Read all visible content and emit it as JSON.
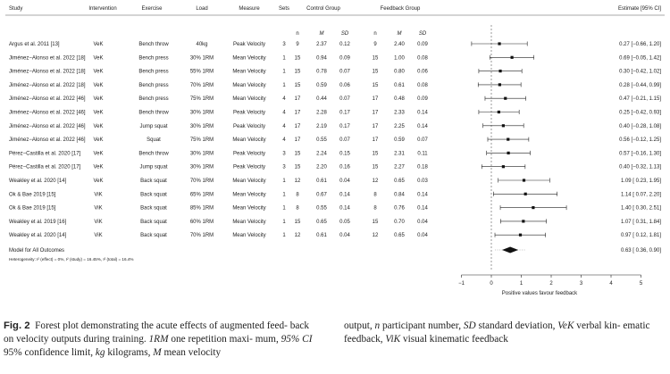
{
  "chart_data": {
    "type": "forest",
    "columns": [
      "Study",
      "Intervention",
      "Exercise",
      "Load",
      "Measure",
      "Sets",
      "Control Group",
      "Feedback Group",
      "Estimate [95% CI]"
    ],
    "subcolumns": [
      "n",
      "M",
      "SD"
    ],
    "rows": [
      {
        "study": "Argus et al. 2011 [13]",
        "intervention": "VeK",
        "exercise": "Bench throw",
        "load": "40kg",
        "measure": "Peak Velocity",
        "sets": "3",
        "c_n": "9",
        "c_m": "2.37",
        "c_sd": "0.12",
        "f_n": "9",
        "f_m": "2.40",
        "f_sd": "0.09",
        "ci_label": "0.27 [−0.66, 1.20]",
        "est": 0.27,
        "lo": -0.66,
        "hi": 1.2
      },
      {
        "study": "Jiménez−Alonso et al. 2022 [18]",
        "intervention": "VeK",
        "exercise": "Bench press",
        "load": "30% 1RM",
        "measure": "Mean Velocity",
        "sets": "1",
        "c_n": "15",
        "c_m": "0.94",
        "c_sd": "0.09",
        "f_n": "15",
        "f_m": "1.00",
        "f_sd": "0.08",
        "ci_label": "0.69 [−0.05, 1.42]",
        "est": 0.69,
        "lo": -0.05,
        "hi": 1.42
      },
      {
        "study": "Jiménez−Alonso et al. 2022 [18]",
        "intervention": "VeK",
        "exercise": "Bench press",
        "load": "55% 1RM",
        "measure": "Mean Velocity",
        "sets": "1",
        "c_n": "15",
        "c_m": "0.78",
        "c_sd": "0.07",
        "f_n": "15",
        "f_m": "0.80",
        "f_sd": "0.06",
        "ci_label": "0.30 [−0.42, 1.02]",
        "est": 0.3,
        "lo": -0.42,
        "hi": 1.02
      },
      {
        "study": "Jiménez−Alonso et al. 2022 [18]",
        "intervention": "VeK",
        "exercise": "Bench press",
        "load": "70% 1RM",
        "measure": "Mean Velocity",
        "sets": "1",
        "c_n": "15",
        "c_m": "0.59",
        "c_sd": "0.06",
        "f_n": "15",
        "f_m": "0.61",
        "f_sd": "0.08",
        "ci_label": "0.28 [−0.44, 0.99]",
        "est": 0.28,
        "lo": -0.44,
        "hi": 0.99
      },
      {
        "study": "Jiménez−Alonso et al. 2022 [46]",
        "intervention": "VeK",
        "exercise": "Bench press",
        "load": "75% 1RM",
        "measure": "Mean Velocity",
        "sets": "4",
        "c_n": "17",
        "c_m": "0.44",
        "c_sd": "0.07",
        "f_n": "17",
        "f_m": "0.48",
        "f_sd": "0.09",
        "ci_label": "0.47 [−0.21, 1.15]",
        "est": 0.47,
        "lo": -0.21,
        "hi": 1.15
      },
      {
        "study": "Jiménez−Alonso et al. 2022 [46]",
        "intervention": "VeK",
        "exercise": "Bench throw",
        "load": "30% 1RM",
        "measure": "Peak Velocity",
        "sets": "4",
        "c_n": "17",
        "c_m": "2.28",
        "c_sd": "0.17",
        "f_n": "17",
        "f_m": "2.33",
        "f_sd": "0.14",
        "ci_label": "0.25 [−0.42, 0.93]",
        "est": 0.25,
        "lo": -0.42,
        "hi": 0.93
      },
      {
        "study": "Jiménez−Alonso et al. 2022 [46]",
        "intervention": "VeK",
        "exercise": "Jump squat",
        "load": "30% 1RM",
        "measure": "Peak Velocity",
        "sets": "4",
        "c_n": "17",
        "c_m": "2.19",
        "c_sd": "0.17",
        "f_n": "17",
        "f_m": "2.25",
        "f_sd": "0.14",
        "ci_label": "0.40 [−0.28, 1.08]",
        "est": 0.4,
        "lo": -0.28,
        "hi": 1.08
      },
      {
        "study": "Jiménez−Alonso et al. 2022 [46]",
        "intervention": "VeK",
        "exercise": "Squat",
        "load": "75% 1RM",
        "measure": "Mean Velocity",
        "sets": "4",
        "c_n": "17",
        "c_m": "0.55",
        "c_sd": "0.07",
        "f_n": "17",
        "f_m": "0.59",
        "f_sd": "0.07",
        "ci_label": "0.56 [−0.12, 1.25]",
        "est": 0.56,
        "lo": -0.12,
        "hi": 1.25
      },
      {
        "study": "Pérez−Castilla et al. 2020 [17]",
        "intervention": "VeK",
        "exercise": "Bench throw",
        "load": "30% 1RM",
        "measure": "Peak Velocity",
        "sets": "3",
        "c_n": "15",
        "c_m": "2.24",
        "c_sd": "0.15",
        "f_n": "15",
        "f_m": "2.31",
        "f_sd": "0.11",
        "ci_label": "0.57 [−0.16, 1.30]",
        "est": 0.57,
        "lo": -0.16,
        "hi": 1.3
      },
      {
        "study": "Pérez−Castilla et al. 2020 [17]",
        "intervention": "VeK",
        "exercise": "Jump squat",
        "load": "30% 1RM",
        "measure": "Peak Velocity",
        "sets": "3",
        "c_n": "15",
        "c_m": "2.20",
        "c_sd": "0.16",
        "f_n": "15",
        "f_m": "2.27",
        "f_sd": "0.18",
        "ci_label": "0.40 [−0.32, 1.13]",
        "est": 0.4,
        "lo": -0.32,
        "hi": 1.13
      },
      {
        "study": "Weakley et al. 2020 [14]",
        "intervention": "VeK",
        "exercise": "Back squat",
        "load": "70% 1RM",
        "measure": "Mean Velocity",
        "sets": "1",
        "c_n": "12",
        "c_m": "0.61",
        "c_sd": "0.04",
        "f_n": "12",
        "f_m": "0.65",
        "f_sd": "0.03",
        "ci_label": "1.09 [ 0.23, 1.95]",
        "est": 1.09,
        "lo": 0.23,
        "hi": 1.95
      },
      {
        "study": "Ok & Bae 2019 [15]",
        "intervention": "ViK",
        "exercise": "Back squat",
        "load": "65% 1RM",
        "measure": "Mean Velocity",
        "sets": "1",
        "c_n": "8",
        "c_m": "0.67",
        "c_sd": "0.14",
        "f_n": "8",
        "f_m": "0.84",
        "f_sd": "0.14",
        "ci_label": "1.14 [ 0.07, 2.20]",
        "est": 1.14,
        "lo": 0.07,
        "hi": 2.2
      },
      {
        "study": "Ok & Bae 2019 [15]",
        "intervention": "ViK",
        "exercise": "Back squat",
        "load": "85% 1RM",
        "measure": "Mean Velocity",
        "sets": "1",
        "c_n": "8",
        "c_m": "0.55",
        "c_sd": "0.14",
        "f_n": "8",
        "f_m": "0.76",
        "f_sd": "0.14",
        "ci_label": "1.40 [ 0.30, 2.51]",
        "est": 1.4,
        "lo": 0.3,
        "hi": 2.51
      },
      {
        "study": "Weakley et al. 2019 [16]",
        "intervention": "ViK",
        "exercise": "Back squat",
        "load": "60% 1RM",
        "measure": "Mean Velocity",
        "sets": "1",
        "c_n": "15",
        "c_m": "0.65",
        "c_sd": "0.05",
        "f_n": "15",
        "f_m": "0.70",
        "f_sd": "0.04",
        "ci_label": "1.07 [ 0.31, 1.84]",
        "est": 1.07,
        "lo": 0.31,
        "hi": 1.84
      },
      {
        "study": "Weakley et al. 2020 [14]",
        "intervention": "ViK",
        "exercise": "Back squat",
        "load": "70% 1RM",
        "measure": "Mean Velocity",
        "sets": "1",
        "c_n": "12",
        "c_m": "0.61",
        "c_sd": "0.04",
        "f_n": "12",
        "f_m": "0.65",
        "f_sd": "0.04",
        "ci_label": "0.97 [ 0.12, 1.81]",
        "est": 0.97,
        "lo": 0.12,
        "hi": 1.81
      }
    ],
    "pooled": {
      "label": "Model for All Outcomes",
      "ci_label": "0.63 [ 0.36, 0.90]",
      "est": 0.63,
      "lo": 0.36,
      "hi": 0.9,
      "pi_lo": 0.36,
      "pi_hi": 0.9
    },
    "heterogeneity": "Heterogeneity: I² (effect) = 0%, I² (study) = 16.45%, I² (total) = 16.4%",
    "x_ticks": [
      -1,
      0,
      1,
      2,
      3,
      4,
      5
    ],
    "xlim": [
      -1,
      5
    ],
    "reference_line": 0,
    "xlabel": "Positive values favour feedback"
  },
  "caption": {
    "label": "Fig. 2",
    "text": "Forest plot demonstrating the acute effects of augmented feedback on velocity outputs during training. 1RM one repetition maximum, 95% CI 95% confidence limit, kg kilograms, M mean velocity output, n participant number, SD standard deviation, VeK verbal kinematic feedback, ViK visual kinematic feedback"
  }
}
